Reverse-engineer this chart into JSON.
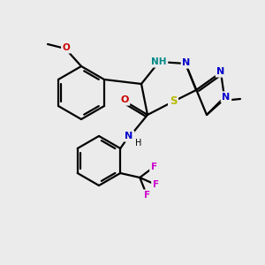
{
  "bg_color": "#ebebeb",
  "bond_color": "#000000",
  "atom_colors": {
    "N": "#0000cc",
    "O": "#cc0000",
    "S": "#b8b800",
    "F": "#cc00cc",
    "NH_color": "#008888",
    "C": "#000000"
  },
  "lw": 1.6
}
